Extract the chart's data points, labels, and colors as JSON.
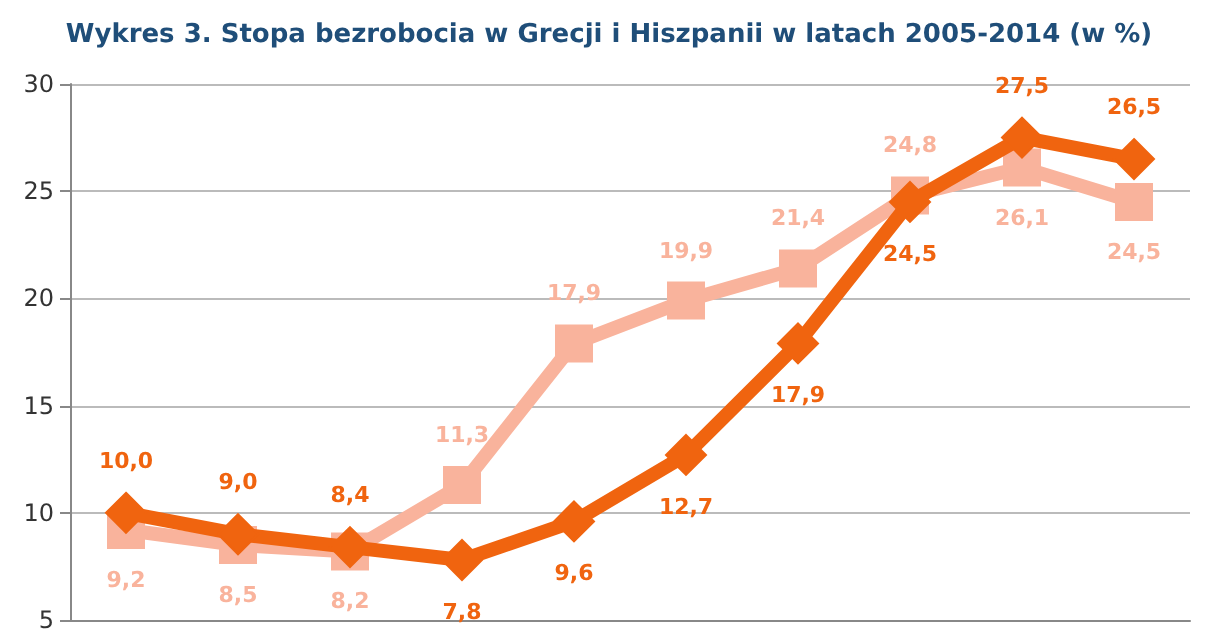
{
  "chart_data": {
    "type": "line",
    "title": "Wykres 3. Stopa bezrobocia w Grecji i Hiszpanii w latach 2005-2014 (w %)",
    "categories": [
      null,
      null,
      null,
      null,
      null,
      null,
      null,
      null,
      null,
      null
    ],
    "series": [
      {
        "color": "#f0640f",
        "marker": "diamond",
        "values": [
          10.0,
          9.0,
          8.4,
          7.8,
          9.6,
          12.7,
          17.9,
          24.5,
          27.5,
          26.5
        ],
        "value_labels": [
          "10,0",
          "9,0",
          "8,4",
          "7,8",
          "9,6",
          "12,7",
          "17,9",
          "24,5",
          "27,5",
          "26,5"
        ]
      },
      {
        "color": "#f9b39c",
        "marker": "square",
        "values": [
          9.2,
          8.5,
          8.2,
          11.3,
          17.9,
          19.9,
          21.4,
          24.8,
          26.1,
          24.5
        ],
        "value_labels": [
          "9,2",
          "8,5",
          "8,2",
          "11,3",
          "17,9",
          "19,9",
          "21,4",
          "24,8",
          "26,1",
          "24,5"
        ]
      }
    ],
    "ylim": [
      5,
      30
    ],
    "yticks": [
      5,
      10,
      15,
      20,
      25,
      30
    ],
    "grid": "y",
    "tick_labels": "y"
  }
}
